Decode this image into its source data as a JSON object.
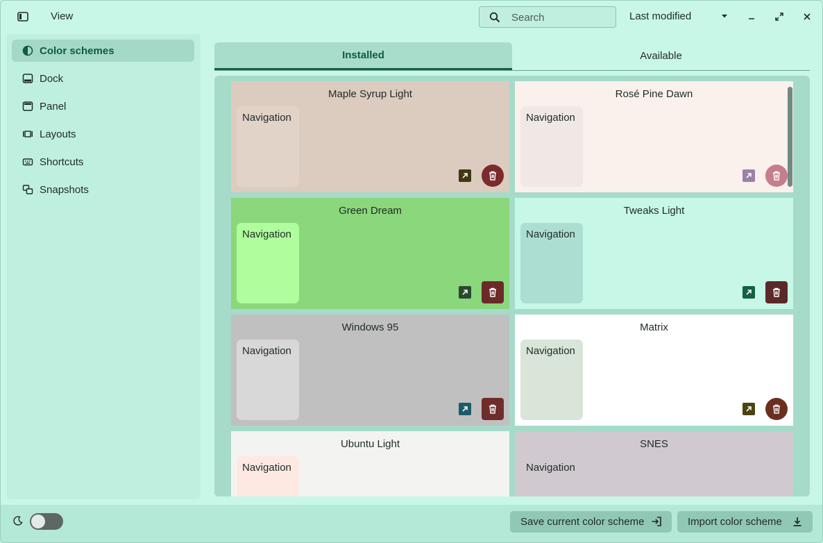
{
  "header": {
    "view_label": "View",
    "search_placeholder": "Search",
    "sort_label": "Last modified"
  },
  "sidebar": {
    "items": [
      {
        "label": "Color schemes",
        "icon": "color-scheme-icon",
        "active": true
      },
      {
        "label": "Dock",
        "icon": "dock-icon"
      },
      {
        "label": "Panel",
        "icon": "panel-icon"
      },
      {
        "label": "Layouts",
        "icon": "layouts-icon"
      },
      {
        "label": "Shortcuts",
        "icon": "keyboard-icon"
      },
      {
        "label": "Snapshots",
        "icon": "snapshots-icon"
      }
    ]
  },
  "tabs": [
    {
      "label": "Installed",
      "active": true
    },
    {
      "label": "Available",
      "active": false
    }
  ],
  "schemes": [
    {
      "name": "Maple Syrup Light",
      "nav_label": "Navigation",
      "bg": "#dccbbf",
      "nav_bg": "#e2d3c8",
      "export_bg": "#3f3812",
      "del_bg": "#7a2b2b"
    },
    {
      "name": "Rosé Pine Dawn",
      "nav_label": "Navigation",
      "bg": "#faf1ec",
      "nav_bg": "#f0e8e4",
      "export_bg": "#9a82a8",
      "del_bg": "#c47e8c"
    },
    {
      "name": "Green Dream",
      "nav_label": "Navigation",
      "bg": "#8ad77c",
      "nav_bg": "#b0fd9e",
      "export_bg": "#2a4a30",
      "del_bg": "#6b2a28"
    },
    {
      "name": "Tweaks Light",
      "nav_label": "Navigation",
      "bg": "#c6f7e7",
      "nav_bg": "#acdfd2",
      "export_bg": "#136048",
      "del_bg": "#5a2a28"
    },
    {
      "name": "Windows 95",
      "nav_label": "Navigation",
      "bg": "#c0c0c0",
      "nav_bg": "#d8d8d8",
      "export_bg": "#1b5c68",
      "del_bg": "#6e2d2b"
    },
    {
      "name": "Matrix",
      "nav_label": "Navigation",
      "bg": "#ffffff",
      "nav_bg": "#d8e5d8",
      "export_bg": "#4c4410",
      "del_bg": "#6b2f20"
    },
    {
      "name": "Ubuntu Light",
      "nav_label": "Navigation",
      "bg": "#f3f4f1",
      "nav_bg": "#fde9e2",
      "export_bg": "#555555",
      "del_bg": "#6e2d2b"
    },
    {
      "name": "SNES",
      "nav_label": "Navigation",
      "bg": "#d0cad0",
      "nav_bg": "#d0cad0",
      "export_bg": "#555555",
      "del_bg": "#6e2d2b"
    }
  ],
  "footer": {
    "save_label": "Save current color scheme",
    "import_label": "Import color scheme"
  },
  "colors": {
    "window_bg": "#c8f7e8",
    "accent": "#0f5a45"
  }
}
